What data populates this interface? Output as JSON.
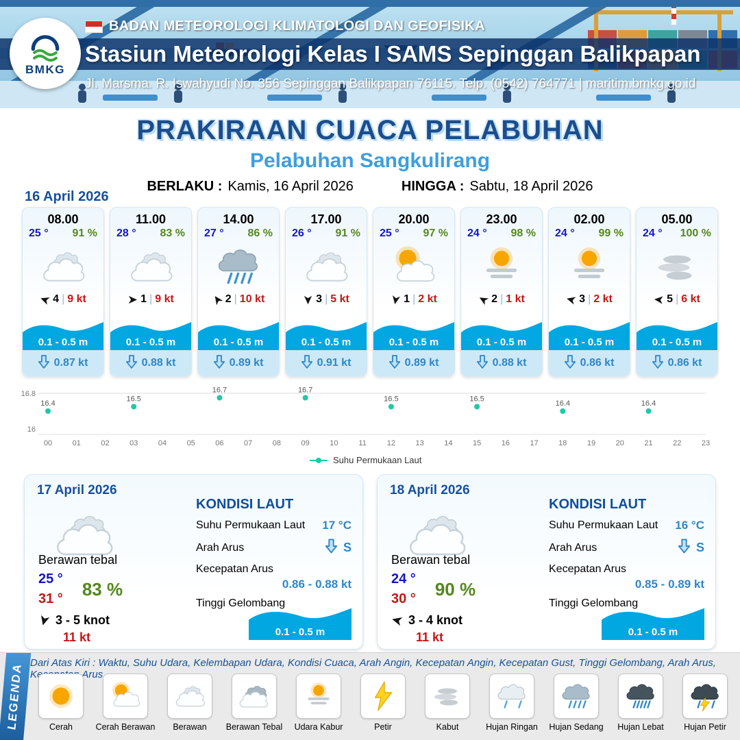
{
  "colors": {
    "accent_blue": "#1b4d8e",
    "light_blue": "#3f9edc",
    "wave_blue": "#00a7e1",
    "temp_blue": "#1515c8",
    "humidity_green": "#55871e",
    "gust_red": "#c61616",
    "sst_point": "#1fc8a9"
  },
  "misc": {
    "divider": "|"
  },
  "header": {
    "logo_text": "BMKG",
    "agency": "BADAN METEOROLOGI KLIMATOLOGI DAN GEOFISIKA",
    "station": "Stasiun Meteorologi Kelas I SAMS Sepinggan Balikpapan",
    "address": "Jl. Marsma. R. Iswahyudi No. 356 Sepinggan Balikpapan 76115. Telp. (0542) 764771 | maritim.bmkg.go.id"
  },
  "title": {
    "main": "PRAKIRAAN CUACA PELABUHAN",
    "subtitle": "Pelabuhan Sangkulirang",
    "valid_from_label": "BERLAKU :",
    "valid_from": "Kamis, 16 April 2026",
    "valid_to_label": "HINGGA :",
    "valid_to": "Sabtu, 18 April 2026"
  },
  "forecast_date": "16 April 2026",
  "forecast_cards": [
    {
      "time": "08.00",
      "temp": "25 °",
      "humidity": "91 %",
      "icon": "berawan",
      "wind_rotation": 200,
      "wind_speed": "4",
      "gust": "9 kt",
      "wave_height": "0.1 - 0.5 m",
      "current_speed": "0.87 kt"
    },
    {
      "time": "11.00",
      "temp": "28 °",
      "humidity": "83 %",
      "icon": "berawan",
      "wind_rotation": 0,
      "wind_speed": "1",
      "gust": "9 kt",
      "wave_height": "0.1 - 0.5 m",
      "current_speed": "0.88 kt"
    },
    {
      "time": "14.00",
      "temp": "27 °",
      "humidity": "86 %",
      "icon": "hujan-sedang",
      "wind_rotation": 235,
      "wind_speed": "2",
      "gust": "10 kt",
      "wave_height": "0.1 - 0.5 m",
      "current_speed": "0.89 kt"
    },
    {
      "time": "17.00",
      "temp": "26 °",
      "humidity": "91 %",
      "icon": "berawan",
      "wind_rotation": 90,
      "wind_speed": "3",
      "gust": "5 kt",
      "wave_height": "0.1 - 0.5 m",
      "current_speed": "0.91 kt"
    },
    {
      "time": "20.00",
      "temp": "25 °",
      "humidity": "97 %",
      "icon": "cerah-berawan",
      "wind_rotation": 100,
      "wind_speed": "1",
      "gust": "2 kt",
      "wave_height": "0.1 - 0.5 m",
      "current_speed": "0.89 kt"
    },
    {
      "time": "23.00",
      "temp": "24 °",
      "humidity": "98 %",
      "icon": "udara-kabur",
      "wind_rotation": 210,
      "wind_speed": "2",
      "gust": "1 kt",
      "wave_height": "0.1 - 0.5 m",
      "current_speed": "0.88 kt"
    },
    {
      "time": "02.00",
      "temp": "24 °",
      "humidity": "99 %",
      "icon": "udara-kabur",
      "wind_rotation": 195,
      "wind_speed": "3",
      "gust": "2 kt",
      "wave_height": "0.1 - 0.5 m",
      "current_speed": "0.86 kt"
    },
    {
      "time": "05.00",
      "temp": "24 °",
      "humidity": "100 %",
      "icon": "kabut",
      "wind_rotation": 185,
      "wind_speed": "5",
      "gust": "6 kt",
      "wave_height": "0.1 - 0.5 m",
      "current_speed": "0.86 kt"
    }
  ],
  "chart_data": {
    "type": "scatter",
    "title": "",
    "legend": "Suhu Permukaan Laut",
    "legend_position": "bottom",
    "x_ticks": [
      "00",
      "01",
      "02",
      "03",
      "04",
      "05",
      "06",
      "07",
      "08",
      "09",
      "10",
      "11",
      "12",
      "13",
      "14",
      "15",
      "16",
      "17",
      "18",
      "19",
      "20",
      "21",
      "22",
      "23"
    ],
    "points": [
      {
        "x": 0,
        "y": 16.4
      },
      {
        "x": 3,
        "y": 16.5
      },
      {
        "x": 6,
        "y": 16.7
      },
      {
        "x": 9,
        "y": 16.7
      },
      {
        "x": 12,
        "y": 16.5
      },
      {
        "x": 15,
        "y": 16.5
      },
      {
        "x": 18,
        "y": 16.4
      },
      {
        "x": 21,
        "y": 16.4
      }
    ],
    "ylim": [
      16,
      16.8
    ],
    "y_tick_labels": [
      "16",
      "16.8"
    ],
    "grid": "minimal",
    "point_color": "#1fc8a9"
  },
  "daily_cards": [
    {
      "date": "17 April 2026",
      "icon": "berawan",
      "condition": "Berawan tebal",
      "temp_min": "25 °",
      "temp_max": "31 °",
      "humidity": "83 %",
      "wind_rotation": 105,
      "wind_range": "3  - 5 knot",
      "gust": "11 kt",
      "sea": {
        "title": "KONDISI LAUT",
        "sst_label": "Suhu Permukaan Laut",
        "sst_value": "17 °C",
        "current_dir_label": "Arah Arus",
        "current_dir": "S",
        "current_speed_label": "Kecepatan Arus",
        "current_speed": "0.86  - 0.88 kt",
        "wave_label": "Tinggi Gelombang",
        "wave_height": "0.1 - 0.5 m"
      }
    },
    {
      "date": "18 April 2026",
      "icon": "berawan",
      "condition": "Berawan tebal",
      "temp_min": "24 °",
      "temp_max": "30 °",
      "humidity": "90 %",
      "wind_rotation": 195,
      "wind_range": "3  - 4 knot",
      "gust": "11 kt",
      "sea": {
        "title": "KONDISI LAUT",
        "sst_label": "Suhu Permukaan Laut",
        "sst_value": "16 °C",
        "current_dir_label": "Arah Arus",
        "current_dir": "S",
        "current_speed_label": "Kecepatan Arus",
        "current_speed": "0.85  - 0.89 kt",
        "wave_label": "Tinggi Gelombang",
        "wave_height": "0.1 - 0.5 m"
      }
    }
  ],
  "legend": {
    "ribbon": "LEGENDA",
    "note": "Dari Atas Kiri : Waktu, Suhu Udara, Kelembapan Udara, Kondisi Cuaca, Arah Angin, Kecepatan Angin, Kecepatan Gust, Tinggi Gelombang, Arah Arus, Kecepatan Arus",
    "items": [
      {
        "label": "Cerah",
        "icon": "cerah"
      },
      {
        "label": "Cerah Berawan",
        "icon": "cerah-berawan"
      },
      {
        "label": "Berawan",
        "icon": "berawan"
      },
      {
        "label": "Berawan Tebal",
        "icon": "berawan-tebal"
      },
      {
        "label": "Udara Kabur",
        "icon": "udara-kabur"
      },
      {
        "label": "Petir",
        "icon": "petir"
      },
      {
        "label": "Kabut",
        "icon": "kabut"
      },
      {
        "label": "Hujan Ringan",
        "icon": "hujan-ringan"
      },
      {
        "label": "Hujan Sedang",
        "icon": "hujan-sedang"
      },
      {
        "label": "Hujan Lebat",
        "icon": "hujan-lebat"
      },
      {
        "label": "Hujan Petir",
        "icon": "hujan-petir"
      }
    ]
  }
}
